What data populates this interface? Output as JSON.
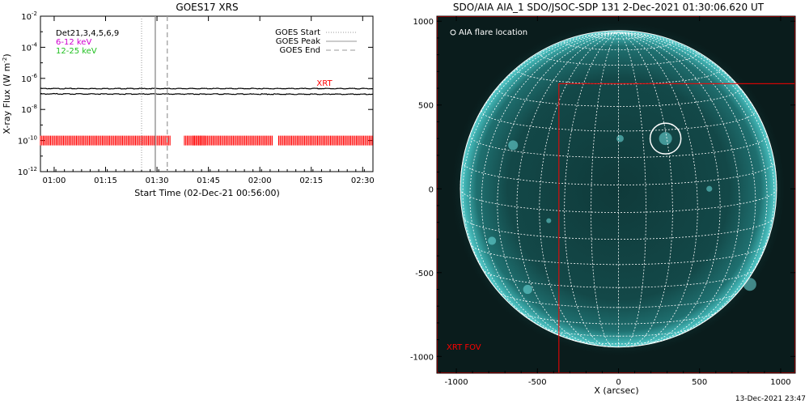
{
  "chart_data": [
    {
      "type": "line",
      "title": "GOES17 XRS",
      "xlabel": "Start Time (02-Dec-21 00:56:00)",
      "ylabel": "X-ray Flux (W m",
      "ylabel_units_sup": "-2",
      "ylabel_close": ")",
      "y_scale": "log",
      "ylim": [
        1e-12,
        0.01
      ],
      "y_tick_exponents": [
        -12,
        -10,
        -8,
        -6,
        -4,
        -2
      ],
      "y_tick_base": "10",
      "xlim_minutes": [
        56,
        153
      ],
      "x_ticks": [
        {
          "m": 60,
          "label": "01:00"
        },
        {
          "m": 75,
          "label": "01:15"
        },
        {
          "m": 90,
          "label": "01:30"
        },
        {
          "m": 105,
          "label": "01:45"
        },
        {
          "m": 120,
          "label": "02:00"
        },
        {
          "m": 135,
          "label": "02:15"
        },
        {
          "m": 150,
          "label": "02:30"
        }
      ],
      "labels_left": [
        {
          "text": "Det21,3,4,5,6,9",
          "color": "#000000"
        },
        {
          "text": "6-12 keV",
          "color": "#d000d0"
        },
        {
          "text": "12-25 keV",
          "color": "#20c020"
        }
      ],
      "legend": [
        {
          "text": "GOES Start",
          "style": "dotted"
        },
        {
          "text": "GOES Peak",
          "style": "solid"
        },
        {
          "text": "GOES End",
          "style": "dashed"
        }
      ],
      "legend_placement": "top-right",
      "series": [
        {
          "name": "",
          "color": "#000000",
          "x_minutes": [
            56,
            153
          ],
          "y": [
            2.2e-07,
            2.2e-07
          ]
        },
        {
          "name": "",
          "color": "#000000",
          "x_minutes": [
            56,
            153
          ],
          "y": [
            1e-07,
            9.5e-08
          ]
        }
      ],
      "goes_times_minutes": {
        "start": 85.5,
        "peak": 89.5,
        "end": 93.0
      },
      "xrt_label": "XRT",
      "xrt_label_color": "#ff0000",
      "xrt_coverage_minutes": [
        [
          56,
          94
        ],
        [
          98,
          104
        ],
        [
          100.5,
          124
        ],
        [
          125.5,
          153
        ]
      ],
      "xrt_coverage_y": 1e-10
    },
    {
      "type": "image",
      "title": "SDO/AIA AIA_1 SDO/JSOC-SDP 131  2-Dec-2021 01:30:06.620 UT",
      "xlabel": "X (arcsec)",
      "xlim": [
        -1120,
        1090
      ],
      "ylim": [
        -1100,
        1030
      ],
      "x_ticks": [
        -1000,
        -500,
        0,
        500,
        1000
      ],
      "y_ticks": [
        -1000,
        -500,
        0,
        500,
        1000
      ],
      "solar_radius_arcsec": 975,
      "flare_location_label": "AIA flare location",
      "flare_location": {
        "x": 290,
        "y": 300,
        "r": 95
      },
      "xrt_fov_label": "XRT FOV",
      "xrt_fov_color": "#ff0000",
      "fov_boxes": [
        {
          "x0": -1120,
          "x1": 1090,
          "y0": -1100,
          "y1": 1030
        },
        {
          "x0": -370,
          "x1": 1090,
          "y0": -1100,
          "y1": 630
        }
      ],
      "grid_spacing_deg": 10
    }
  ],
  "footer": {
    "timestamp": "13-Dec-2021 23:47"
  }
}
